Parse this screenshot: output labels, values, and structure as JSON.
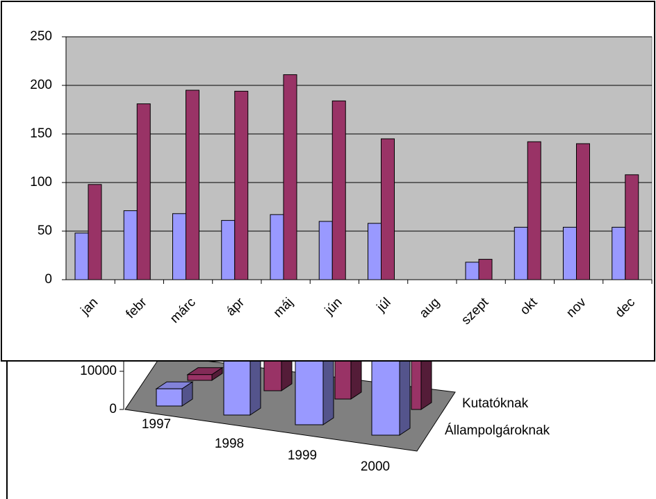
{
  "chart_data": [
    {
      "type": "bar",
      "categories": [
        "jan",
        "febr",
        "márc",
        "ápr",
        "máj",
        "jún",
        "júl",
        "aug",
        "szept",
        "okt",
        "nov",
        "dec"
      ],
      "series": [
        {
          "color": "#9999ff",
          "values": [
            48,
            71,
            68,
            61,
            67,
            60,
            58,
            0,
            18,
            54,
            54,
            54
          ]
        },
        {
          "color": "#993366",
          "values": [
            98,
            181,
            195,
            194,
            211,
            184,
            145,
            0,
            21,
            142,
            140,
            108
          ]
        }
      ],
      "ylim": [
        0,
        250
      ],
      "yticks": [
        0,
        50,
        100,
        150,
        200,
        250
      ],
      "grid": true,
      "background": "#c0c0c0"
    },
    {
      "type": "bar3d",
      "categories": [
        "1997",
        "1998",
        "1999",
        "2000"
      ],
      "series": [
        {
          "name": "Kutatóknak",
          "color": "#993366",
          "values": [
            1500,
            15000,
            14000,
            14000
          ]
        },
        {
          "name": "Állampolgároknak",
          "color": "#9999ff",
          "values": [
            4500,
            30000,
            32000,
            34000
          ]
        }
      ],
      "ylim": [
        0,
        40000
      ],
      "yticks": [
        0,
        10000
      ],
      "floor": "#808080"
    }
  ]
}
